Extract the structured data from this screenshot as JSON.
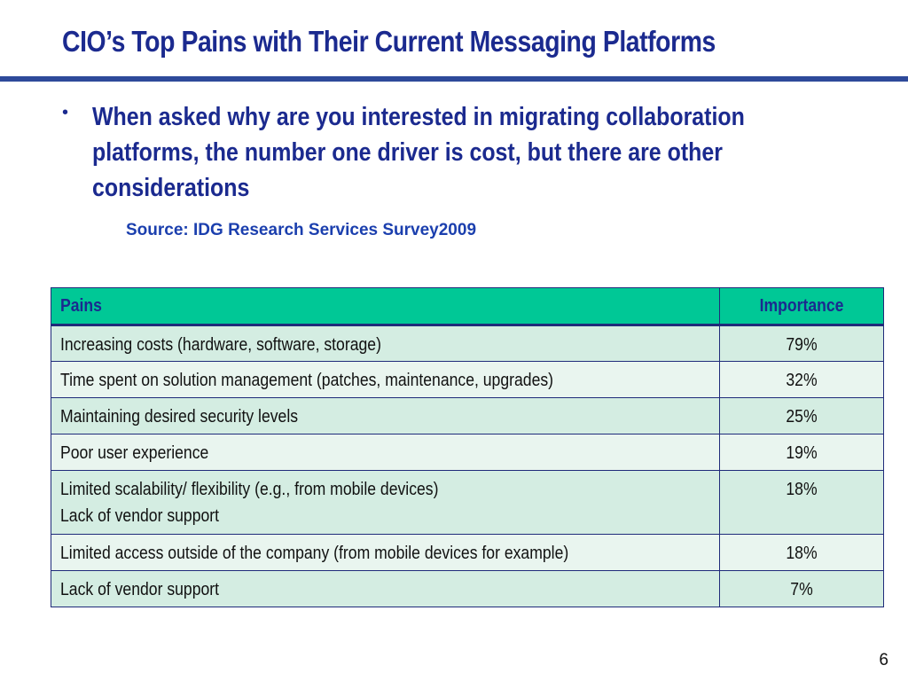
{
  "slide": {
    "title": "CIO’s Top Pains with Their Current Messaging Platforms",
    "bullet": "When asked why are you interested in migrating collaboration platforms, the number one driver is cost, but there are other considerations",
    "source": "Source: IDG Research Services Survey2009",
    "page_number": "6"
  },
  "table": {
    "headers": {
      "pains": "Pains",
      "importance": "Importance"
    },
    "rows": [
      {
        "pain": "Increasing costs (hardware, software,  storage)",
        "importance": "79%"
      },
      {
        "pain": "Time spent on solution management (patches, maintenance, upgrades)",
        "importance": "32%"
      },
      {
        "pain": "Maintaining desired security levels",
        "importance": "25%"
      },
      {
        "pain": "Poor user experience",
        "importance": "19%"
      },
      {
        "pain": "Limited scalability/ flexibility (e.g., from mobile devices)",
        "pain_line2": "Lack of vendor support",
        "importance": "18%"
      },
      {
        "pain": "Limited access outside of the company (from mobile devices for example)",
        "importance": "18%"
      },
      {
        "pain": "Lack of vendor support",
        "importance": "7%"
      }
    ]
  },
  "colors": {
    "title": "#1b2a8f",
    "header_bg": "#00c896",
    "row_dark": "#d4ede2",
    "row_light": "#e9f5ef",
    "rule": "#2e4a9a"
  }
}
